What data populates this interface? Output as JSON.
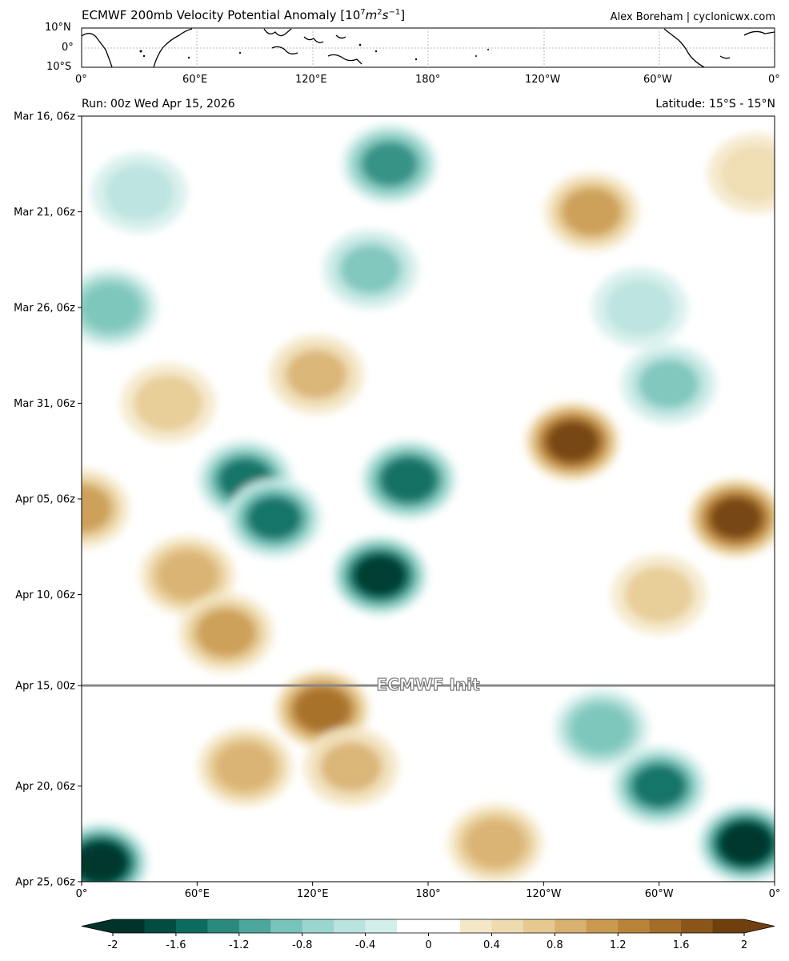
{
  "header": {
    "title_prefix": "ECMWF 200mb Velocity Potential Anomaly [10",
    "title_exp": "7",
    "title_mid": "m",
    "title_exp2": "2",
    "title_mid2": "s",
    "title_exp3": "−1",
    "title_suffix": "]",
    "credit": "Alex Boreham | cyclonicwx.com"
  },
  "map": {
    "lat_ticks": [
      "10°N",
      "0°",
      "10°S"
    ],
    "lon_ticks": [
      "0°",
      "60°E",
      "120°E",
      "180°",
      "120°W",
      "60°W",
      "0°"
    ]
  },
  "run_info": {
    "run": "Run: 00z Wed Apr 15, 2026",
    "latitude": "Latitude: 15°S - 15°N",
    "init_label": "ECMWF Init"
  },
  "chart_data": {
    "type": "heatmap",
    "x_axis": {
      "ticks": [
        "0°",
        "60°E",
        "120°E",
        "180°",
        "120°W",
        "60°W",
        "0°"
      ],
      "range_deg_east": [
        0,
        360
      ]
    },
    "y_axis": {
      "ticks": [
        "Mar 16, 06z",
        "Mar 21, 06z",
        "Mar 26, 06z",
        "Mar 31, 06z",
        "Apr 05, 06z",
        "Apr 10, 06z",
        "Apr 15, 00z",
        "Apr 20, 06z",
        "Apr 25, 06z"
      ],
      "range": [
        "Mar 16, 06z",
        "Apr 25, 06z"
      ],
      "direction": "time increases downward"
    },
    "init_time": "Apr 15, 00z",
    "colorbar": {
      "ticks": [
        "-2",
        "-1.6",
        "-1.2",
        "-0.8",
        "-0.4",
        "0",
        "0.4",
        "0.8",
        "1.2",
        "1.6",
        "2"
      ],
      "levels": [
        -2.0,
        -1.8,
        -1.6,
        -1.4,
        -1.2,
        -1.0,
        -0.8,
        -0.6,
        -0.4,
        -0.2,
        0.0,
        0.2,
        0.4,
        0.6,
        0.8,
        1.0,
        1.2,
        1.4,
        1.6,
        1.8,
        2.0
      ],
      "colors": [
        "#01332a",
        "#024c40",
        "#0d6b5f",
        "#2b8a7e",
        "#4ea79c",
        "#78c4ba",
        "#9bd6cd",
        "#b9e3de",
        "#d3efeb",
        "#ffffff",
        "#ffffff",
        "#f4e8c8",
        "#eedbb0",
        "#e6c991",
        "#d8b070",
        "#c99a50",
        "#b9833a",
        "#a46d28",
        "#8b561a",
        "#6f400e"
      ],
      "extend": "both"
    },
    "anomalies": [
      {
        "lon": 160,
        "time": "Mar 18, 18z",
        "value": -1.3
      },
      {
        "lon": 150,
        "time": "Mar 24, 06z",
        "value": -0.9
      },
      {
        "lon": 30,
        "time": "Mar 20, 06z",
        "value": -0.6
      },
      {
        "lon": 15,
        "time": "Mar 26, 06z",
        "value": -1.0
      },
      {
        "lon": 265,
        "time": "Mar 21, 06z",
        "value": 1.0
      },
      {
        "lon": 290,
        "time": "Mar 26, 06z",
        "value": -0.6
      },
      {
        "lon": 305,
        "time": "Mar 30, 06z",
        "value": -0.9
      },
      {
        "lon": 122,
        "time": "Mar 29, 18z",
        "value": 0.8
      },
      {
        "lon": 45,
        "time": "Mar 31, 06z",
        "value": 0.6
      },
      {
        "lon": 255,
        "time": "Apr 02, 06z",
        "value": 1.8
      },
      {
        "lon": 85,
        "time": "Apr 04, 06z",
        "value": -1.5
      },
      {
        "lon": 100,
        "time": "Apr 06, 06z",
        "value": -1.5
      },
      {
        "lon": 170,
        "time": "Apr 04, 06z",
        "value": -1.6
      },
      {
        "lon": 155,
        "time": "Apr 09, 06z",
        "value": -1.9
      },
      {
        "lon": 340,
        "time": "Apr 06, 06z",
        "value": 1.9
      },
      {
        "lon": 0,
        "time": "Apr 05, 18z",
        "value": 1.0
      },
      {
        "lon": 55,
        "time": "Apr 09, 06z",
        "value": 0.9
      },
      {
        "lon": 75,
        "time": "Apr 12, 06z",
        "value": 1.0
      },
      {
        "lon": 300,
        "time": "Apr 10, 06z",
        "value": 0.6
      },
      {
        "lon": 125,
        "time": "Apr 16, 06z",
        "value": 1.5
      },
      {
        "lon": 85,
        "time": "Apr 19, 06z",
        "value": 0.9
      },
      {
        "lon": 140,
        "time": "Apr 19, 06z",
        "value": 0.8
      },
      {
        "lon": 215,
        "time": "Apr 23, 06z",
        "value": 0.9
      },
      {
        "lon": 270,
        "time": "Apr 17, 06z",
        "value": -1.0
      },
      {
        "lon": 300,
        "time": "Apr 20, 06z",
        "value": -1.5
      },
      {
        "lon": 345,
        "time": "Apr 23, 06z",
        "value": -2.0
      },
      {
        "lon": 10,
        "time": "Apr 24, 06z",
        "value": -2.0
      },
      {
        "lon": 350,
        "time": "Mar 19, 06z",
        "value": 0.5
      }
    ]
  }
}
